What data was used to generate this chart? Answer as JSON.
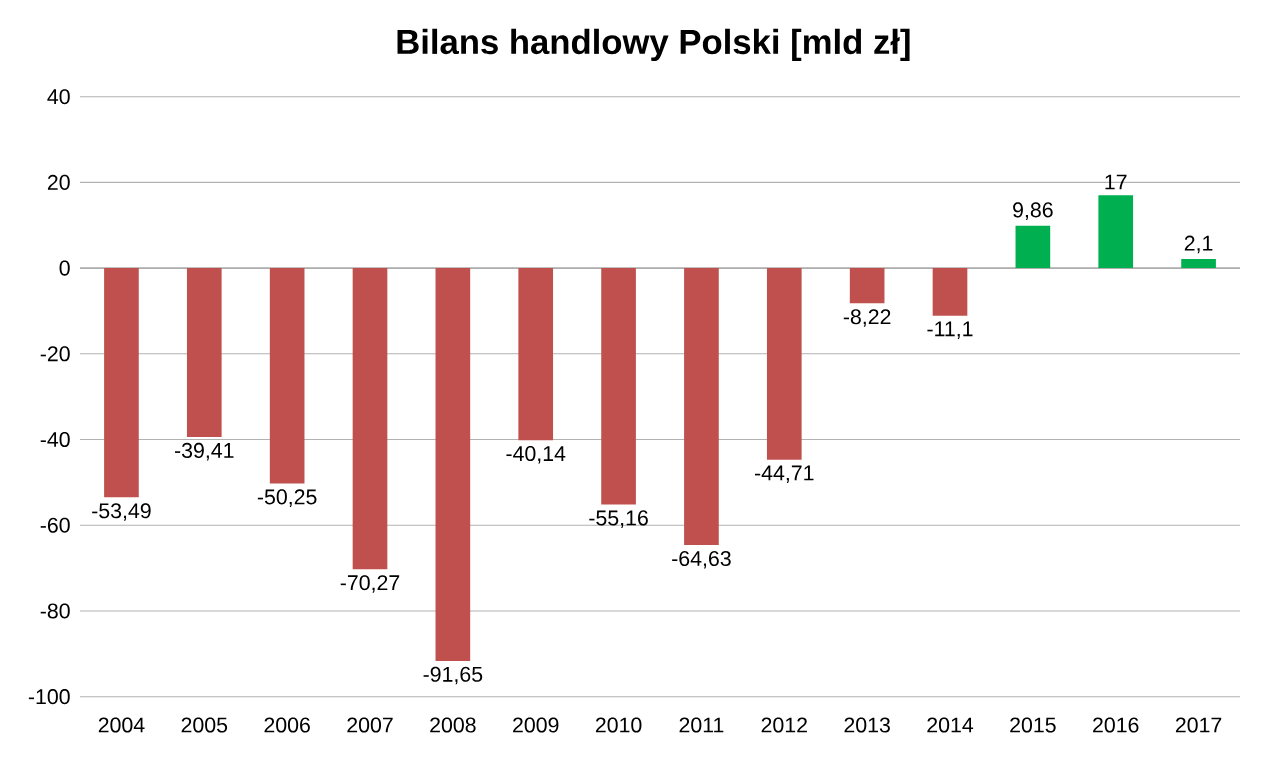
{
  "chart_data": {
    "type": "bar",
    "title": "Bilans handlowy Polski [mld zł]",
    "categories": [
      "2004",
      "2005",
      "2006",
      "2007",
      "2008",
      "2009",
      "2010",
      "2011",
      "2012",
      "2013",
      "2014",
      "2015",
      "2016",
      "2017"
    ],
    "values": [
      -53.49,
      -39.41,
      -50.25,
      -70.27,
      -91.65,
      -40.14,
      -55.16,
      -64.63,
      -44.71,
      -8.22,
      -11.1,
      9.86,
      17,
      2.1
    ],
    "value_labels": [
      "-53,49",
      "-39,41",
      "-50,25",
      "-70,27",
      "-91,65",
      "-40,14",
      "-55,16",
      "-64,63",
      "-44,71",
      "-8,22",
      "-11,1",
      "9,86",
      "17",
      "2,1"
    ],
    "colors": [
      "#c0504d",
      "#c0504d",
      "#c0504d",
      "#c0504d",
      "#c0504d",
      "#c0504d",
      "#c0504d",
      "#c0504d",
      "#c0504d",
      "#c0504d",
      "#c0504d",
      "#00b050",
      "#00b050",
      "#00b050"
    ],
    "ylim": [
      -100,
      40
    ],
    "yticks": [
      -100,
      -80,
      -60,
      -40,
      -20,
      0,
      20,
      40
    ],
    "grid": "y"
  }
}
